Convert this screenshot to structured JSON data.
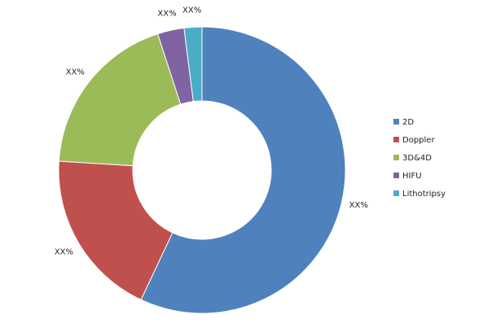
{
  "chart_data": {
    "type": "donut",
    "categories": [
      "2D",
      "Doppler",
      "3D&4D",
      "HIFU",
      "Lithotripsy"
    ],
    "values": [
      57,
      19,
      19,
      3,
      2
    ],
    "value_labels": [
      "XX%",
      "XX%",
      "XX%",
      "XX%",
      "XX%"
    ],
    "colors": [
      "#4f81bd",
      "#c0504d",
      "#9bbb59",
      "#8064a2",
      "#4bacc6"
    ],
    "legend": "right"
  }
}
